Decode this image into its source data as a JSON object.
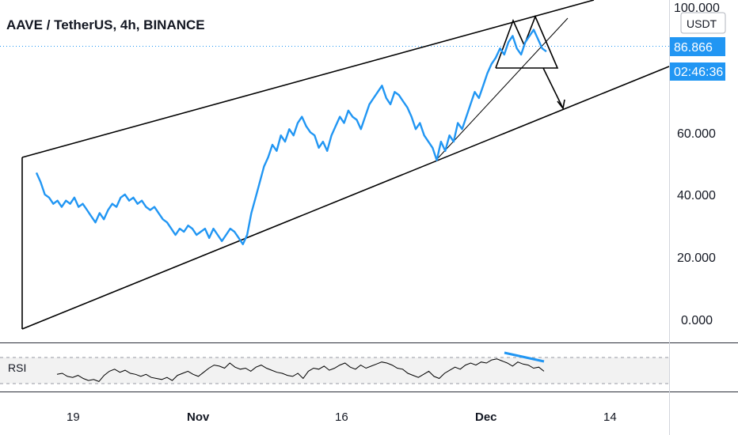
{
  "header": {
    "title": "AAVE / TetherUS, 4h, BINANCE"
  },
  "price_scale": {
    "unit": "USDT",
    "ticks": [
      "100.000",
      "60.000",
      "40.000",
      "20.000",
      "0.000"
    ],
    "last_price": "86.866",
    "countdown": "02:46:36"
  },
  "time_scale": {
    "ticks": [
      "19",
      "Nov",
      "16",
      "Dec",
      "14"
    ],
    "bold": [
      "Nov",
      "Dec"
    ]
  },
  "rsi": {
    "label": "RSI"
  },
  "colors": {
    "price_line": "#2196f3",
    "price_tag": "#2196f3",
    "drawings": "#000000",
    "rsi_line": "#000000",
    "rsi_divergence": "#2196f3",
    "rsi_band": "#f2f2f2"
  },
  "chart_data": {
    "type": "line",
    "title": "AAVE / TetherUS, 4h, BINANCE",
    "ylabel": "USDT",
    "ylim": [
      -6,
      104
    ],
    "x_ticks": [
      "19",
      "Nov",
      "16",
      "Dec",
      "14"
    ],
    "series": [
      {
        "values": [
          48,
          45,
          41,
          40,
          38,
          39,
          37,
          39,
          38,
          40,
          37,
          38,
          36,
          34,
          32,
          35,
          33,
          36,
          38,
          37,
          40,
          41,
          39,
          40,
          38,
          39,
          37,
          36,
          37,
          35,
          33,
          32,
          30,
          28,
          30,
          29,
          31,
          30,
          28,
          29,
          30,
          27,
          30,
          28,
          26,
          28,
          30,
          29,
          27,
          25,
          28,
          35,
          40,
          45,
          50,
          53,
          57,
          55,
          60,
          58,
          62,
          60,
          64,
          66,
          63,
          61,
          60,
          56,
          58,
          55,
          60,
          63,
          66,
          64,
          68,
          66,
          65,
          62,
          66,
          70,
          72,
          74,
          76,
          72,
          70,
          74,
          73,
          71,
          69,
          66,
          62,
          64,
          60,
          58,
          56,
          52,
          58,
          55,
          60,
          58,
          64,
          62,
          66,
          70,
          74,
          72,
          76,
          80,
          83,
          85,
          88,
          86,
          90,
          92,
          88,
          86,
          90,
          92,
          94,
          91,
          88,
          87
        ]
      }
    ],
    "rsi_values": [
      49,
      50,
      47,
      46,
      48,
      45,
      43,
      44,
      42,
      48,
      52,
      54,
      51,
      53,
      50,
      49,
      47,
      49,
      46,
      45,
      44,
      46,
      43,
      48,
      50,
      52,
      49,
      47,
      51,
      55,
      58,
      57,
      55,
      60,
      56,
      54,
      55,
      52,
      56,
      58,
      55,
      53,
      51,
      50,
      48,
      47,
      50,
      45,
      52,
      55,
      54,
      57,
      53,
      55,
      58,
      60,
      56,
      54,
      58,
      55,
      57,
      59,
      61,
      60,
      58,
      55,
      54,
      50,
      48,
      46,
      49,
      52,
      47,
      45,
      50,
      53,
      56,
      54,
      58,
      60,
      58,
      61,
      60,
      63,
      64,
      62,
      60,
      57,
      61,
      59,
      58,
      55,
      56,
      52
    ]
  }
}
